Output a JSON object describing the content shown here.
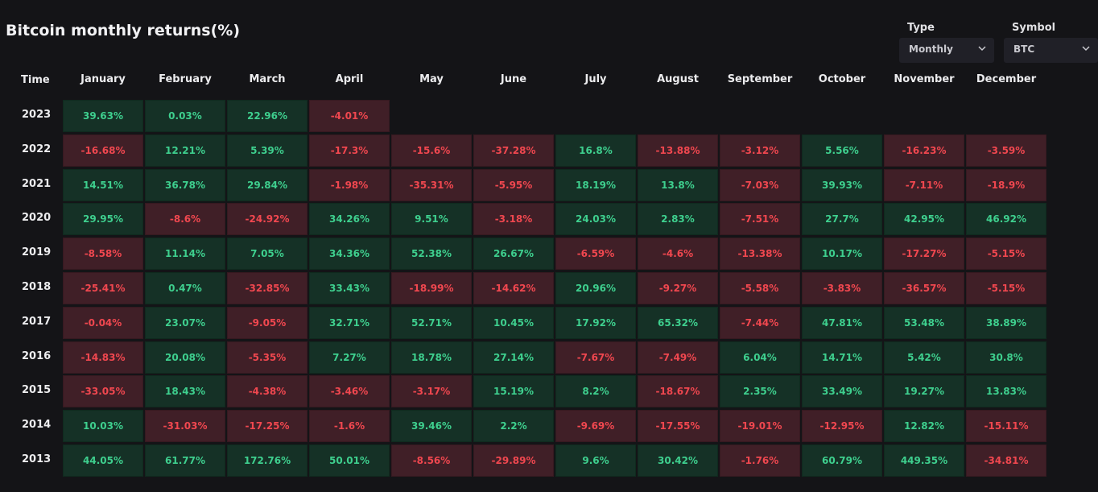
{
  "header": {
    "title": "Bitcoin monthly returns(%)"
  },
  "controls": {
    "type_label": "Type",
    "type_value": "Monthly",
    "symbol_label": "Symbol",
    "symbol_value": "BTC"
  },
  "colors": {
    "positive_text": "#3ecf8e",
    "negative_text": "#f0474f",
    "positive_bg": "#153126",
    "negative_bg": "#401f27"
  },
  "chart_data": {
    "type": "heatmap",
    "title": "Bitcoin monthly returns(%)",
    "row_header": "Time",
    "columns": [
      "January",
      "February",
      "March",
      "April",
      "May",
      "June",
      "July",
      "August",
      "September",
      "October",
      "November",
      "December"
    ],
    "rows": [
      {
        "year": "2023",
        "values": [
          "39.63%",
          "0.03%",
          "22.96%",
          "-4.01%",
          null,
          null,
          null,
          null,
          null,
          null,
          null,
          null
        ]
      },
      {
        "year": "2022",
        "values": [
          "-16.68%",
          "12.21%",
          "5.39%",
          "-17.3%",
          "-15.6%",
          "-37.28%",
          "16.8%",
          "-13.88%",
          "-3.12%",
          "5.56%",
          "-16.23%",
          "-3.59%"
        ]
      },
      {
        "year": "2021",
        "values": [
          "14.51%",
          "36.78%",
          "29.84%",
          "-1.98%",
          "-35.31%",
          "-5.95%",
          "18.19%",
          "13.8%",
          "-7.03%",
          "39.93%",
          "-7.11%",
          "-18.9%"
        ]
      },
      {
        "year": "2020",
        "values": [
          "29.95%",
          "-8.6%",
          "-24.92%",
          "34.26%",
          "9.51%",
          "-3.18%",
          "24.03%",
          "2.83%",
          "-7.51%",
          "27.7%",
          "42.95%",
          "46.92%"
        ]
      },
      {
        "year": "2019",
        "values": [
          "-8.58%",
          "11.14%",
          "7.05%",
          "34.36%",
          "52.38%",
          "26.67%",
          "-6.59%",
          "-4.6%",
          "-13.38%",
          "10.17%",
          "-17.27%",
          "-5.15%"
        ]
      },
      {
        "year": "2018",
        "values": [
          "-25.41%",
          "0.47%",
          "-32.85%",
          "33.43%",
          "-18.99%",
          "-14.62%",
          "20.96%",
          "-9.27%",
          "-5.58%",
          "-3.83%",
          "-36.57%",
          "-5.15%"
        ]
      },
      {
        "year": "2017",
        "values": [
          "-0.04%",
          "23.07%",
          "-9.05%",
          "32.71%",
          "52.71%",
          "10.45%",
          "17.92%",
          "65.32%",
          "-7.44%",
          "47.81%",
          "53.48%",
          "38.89%"
        ]
      },
      {
        "year": "2016",
        "values": [
          "-14.83%",
          "20.08%",
          "-5.35%",
          "7.27%",
          "18.78%",
          "27.14%",
          "-7.67%",
          "-7.49%",
          "6.04%",
          "14.71%",
          "5.42%",
          "30.8%"
        ]
      },
      {
        "year": "2015",
        "values": [
          "-33.05%",
          "18.43%",
          "-4.38%",
          "-3.46%",
          "-3.17%",
          "15.19%",
          "8.2%",
          "-18.67%",
          "2.35%",
          "33.49%",
          "19.27%",
          "13.83%"
        ]
      },
      {
        "year": "2014",
        "values": [
          "10.03%",
          "-31.03%",
          "-17.25%",
          "-1.6%",
          "39.46%",
          "2.2%",
          "-9.69%",
          "-17.55%",
          "-19.01%",
          "-12.95%",
          "12.82%",
          "-15.11%"
        ]
      },
      {
        "year": "2013",
        "values": [
          "44.05%",
          "61.77%",
          "172.76%",
          "50.01%",
          "-8.56%",
          "-29.89%",
          "9.6%",
          "30.42%",
          "-1.76%",
          "60.79%",
          "449.35%",
          "-34.81%"
        ]
      }
    ]
  }
}
